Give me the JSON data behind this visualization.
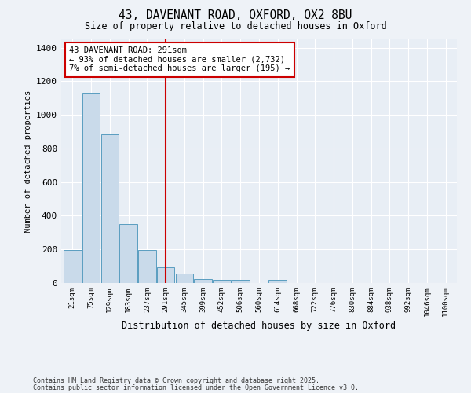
{
  "title1": "43, DAVENANT ROAD, OXFORD, OX2 8BU",
  "title2": "Size of property relative to detached houses in Oxford",
  "xlabel": "Distribution of detached houses by size in Oxford",
  "ylabel": "Number of detached properties",
  "categories": [
    "21sqm",
    "75sqm",
    "129sqm",
    "183sqm",
    "237sqm",
    "291sqm",
    "345sqm",
    "399sqm",
    "452sqm",
    "506sqm",
    "560sqm",
    "614sqm",
    "668sqm",
    "722sqm",
    "776sqm",
    "830sqm",
    "884sqm",
    "938sqm",
    "992sqm",
    "1046sqm",
    "1100sqm"
  ],
  "values": [
    195,
    1130,
    885,
    350,
    195,
    95,
    57,
    23,
    20,
    18,
    0,
    18,
    0,
    0,
    0,
    0,
    0,
    0,
    0,
    0,
    0
  ],
  "bar_color": "#c9daea",
  "bar_edge_color": "#5a9dc0",
  "vline_x": 5,
  "vline_color": "#cc0000",
  "annotation_text": "43 DAVENANT ROAD: 291sqm\n← 93% of detached houses are smaller (2,732)\n7% of semi-detached houses are larger (195) →",
  "annotation_box_color": "#cc0000",
  "ylim": [
    0,
    1450
  ],
  "yticks": [
    0,
    200,
    400,
    600,
    800,
    1000,
    1200,
    1400
  ],
  "footer1": "Contains HM Land Registry data © Crown copyright and database right 2025.",
  "footer2": "Contains public sector information licensed under the Open Government Licence v3.0.",
  "bg_color": "#eef2f7",
  "plot_bg_color": "#e8eef5",
  "grid_color": "#ffffff"
}
